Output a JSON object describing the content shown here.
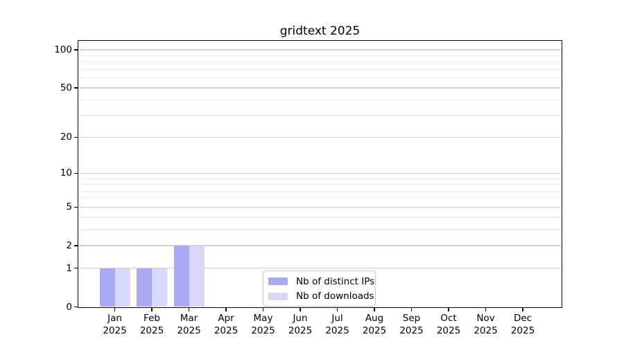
{
  "chart_data": {
    "type": "bar",
    "title": "gridtext 2025",
    "categories": [
      "Jan 2025",
      "Feb 2025",
      "Mar 2025",
      "Apr 2025",
      "May 2025",
      "Jun 2025",
      "Jul 2025",
      "Aug 2025",
      "Sep 2025",
      "Oct 2025",
      "Nov 2025",
      "Dec 2025"
    ],
    "months": [
      "Jan",
      "Feb",
      "Mar",
      "Apr",
      "May",
      "Jun",
      "Jul",
      "Aug",
      "Sep",
      "Oct",
      "Nov",
      "Dec"
    ],
    "year": "2025",
    "series": [
      {
        "name": "Nb of distinct IPs",
        "color": "#a9a9f4",
        "values": [
          1,
          1,
          2,
          0,
          0,
          0,
          0,
          0,
          0,
          0,
          0,
          0
        ]
      },
      {
        "name": "Nb of downloads",
        "color": "#d8d8fa",
        "values": [
          1,
          1,
          2,
          0,
          0,
          0,
          0,
          0,
          0,
          0,
          0,
          0
        ]
      }
    ],
    "y_axis": {
      "scale": "log1p",
      "min": 0,
      "max": 117,
      "major_ticks": [
        0,
        1,
        2,
        5,
        10,
        20,
        50,
        100
      ],
      "minor_gridlines": [
        3,
        4,
        6,
        7,
        8,
        9,
        30,
        40,
        60,
        70,
        80,
        90
      ]
    },
    "x_axis": {
      "second_line": "2025"
    },
    "grid": {
      "major_color": "#cfcfcf",
      "minor_color": "#ececec"
    },
    "legend": {
      "position": "inside lower center",
      "entries": [
        "Nb of distinct IPs",
        "Nb of downloads"
      ]
    },
    "colors": {
      "background": "#ffffff",
      "spine": "#000000",
      "text": "#000000"
    }
  }
}
